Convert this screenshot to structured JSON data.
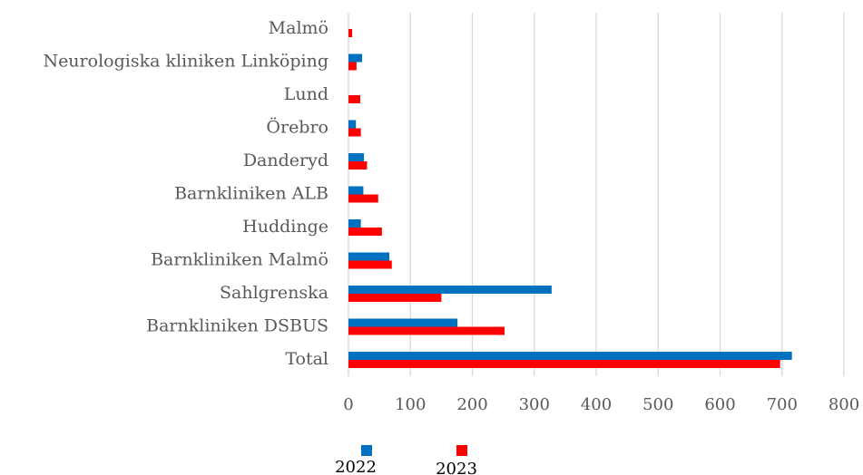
{
  "chart_data": {
    "type": "bar",
    "orientation": "horizontal",
    "categories": [
      "Malmö",
      "Neurologiska kliniken Linköping",
      "Lund",
      "Örebro",
      "Danderyd",
      "Barnkliniken ALB",
      "Huddinge",
      "Barnkliniken Malmö",
      "Sahlgrenska",
      "Barnkliniken DSBUS",
      "Total"
    ],
    "series": [
      {
        "name": "2022",
        "color": "#0070c0",
        "values": [
          0,
          22,
          0,
          12,
          25,
          24,
          20,
          66,
          328,
          176,
          716
        ]
      },
      {
        "name": "2023",
        "color": "#ff0000",
        "values": [
          6,
          13,
          19,
          20,
          30,
          48,
          54,
          70,
          150,
          252,
          697
        ]
      }
    ],
    "xlim": [
      0,
      800
    ],
    "xticks": [
      0,
      100,
      200,
      300,
      400,
      500,
      600,
      700,
      800
    ],
    "grid": true,
    "legend": "bottom"
  }
}
